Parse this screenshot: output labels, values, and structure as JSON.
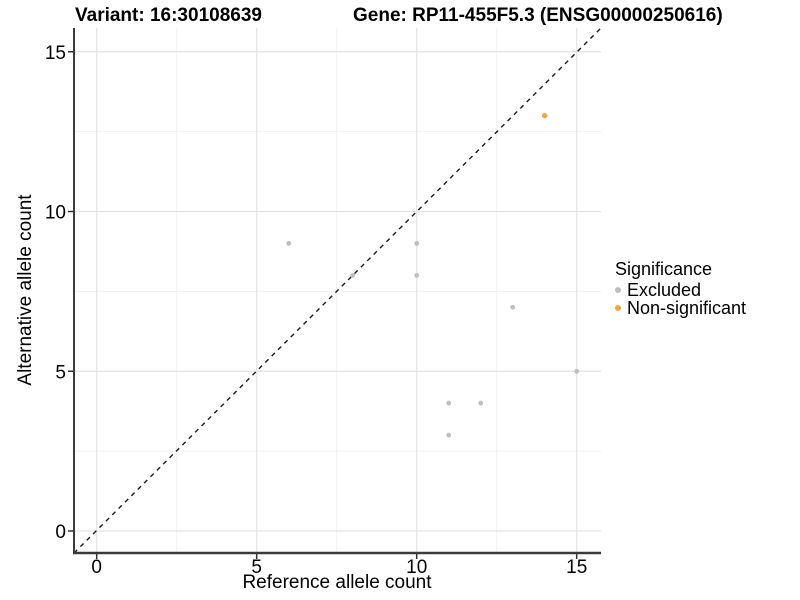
{
  "header": {
    "variant_title": "Variant: 16:30108639",
    "gene_title": "Gene: RP11-455F5.3 (ENSG00000250616)"
  },
  "legend": {
    "title": "Significance",
    "items": [
      {
        "label": "Excluded",
        "color": "#BEBEBE"
      },
      {
        "label": "Non-significant",
        "color": "#F8A43D"
      }
    ]
  },
  "chart_data": {
    "type": "scatter",
    "title": "Variant: 16:30108639 | Gene: RP11-455F5.3 (ENSG00000250616)",
    "xlabel": "Reference allele count",
    "ylabel": "Alternative allele count",
    "xlim": [
      0,
      15
    ],
    "ylim": [
      0,
      15
    ],
    "x_ticks": [
      0,
      5,
      10,
      15
    ],
    "y_ticks": [
      0,
      5,
      10,
      15
    ],
    "minor_ticks": [
      2.5,
      7.5,
      12.5
    ],
    "grid": true,
    "legend_position": "right",
    "identity_line": {
      "style": "dashed",
      "from": [
        0,
        0
      ],
      "to": [
        15,
        15
      ]
    },
    "series": [
      {
        "name": "Excluded",
        "color": "#BEBEBE",
        "points": [
          [
            6,
            9
          ],
          [
            8,
            8
          ],
          [
            10,
            9
          ],
          [
            10,
            8
          ],
          [
            11,
            4
          ],
          [
            11,
            3
          ],
          [
            12,
            4
          ],
          [
            13,
            7
          ],
          [
            15,
            5
          ]
        ]
      },
      {
        "name": "Non-significant",
        "color": "#F8A43D",
        "points": [
          [
            14,
            13
          ]
        ]
      }
    ]
  },
  "colors": {
    "background": "#FFFFFF",
    "grid_major": "#E3E3E3",
    "grid_minor": "#F1F1F1",
    "axis_line": "#3A3A3A",
    "tick_mark": "#333333",
    "dashed_line": "#1A1A1A",
    "text": "#000000"
  }
}
